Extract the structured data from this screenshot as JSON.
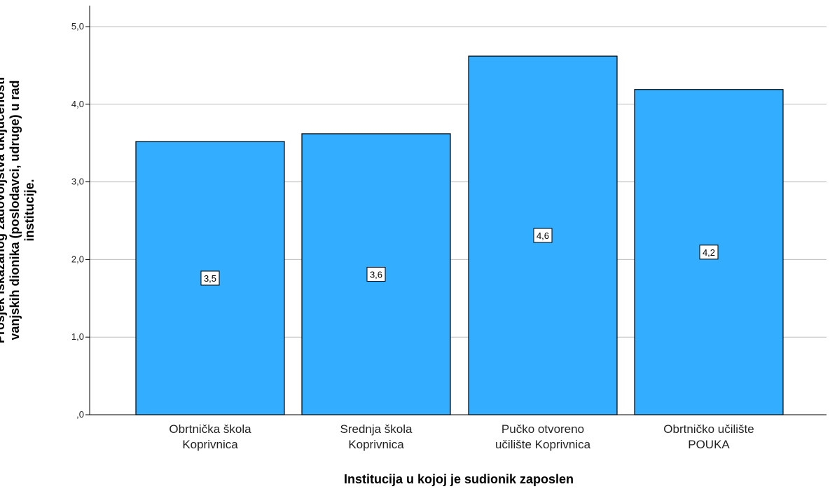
{
  "chart_data": {
    "type": "bar",
    "categories": [
      [
        "Obrtnička škola",
        "Koprivnica"
      ],
      [
        "Srednja škola",
        "Koprivnica"
      ],
      [
        "Pučko otvoreno",
        "učilište Koprivnica"
      ],
      [
        "Obrtničko učilište",
        "POUKA"
      ]
    ],
    "values": [
      3.52,
      3.62,
      4.62,
      4.19
    ],
    "value_labels": [
      "3,5",
      "3,6",
      "4,6",
      "4,2"
    ],
    "y_ticks": [
      0,
      1,
      2,
      3,
      4,
      5
    ],
    "y_tick_labels": [
      ",0",
      "1,0",
      "2,0",
      "3,0",
      "4,0",
      "5,0"
    ],
    "ylim": [
      0,
      5.25
    ],
    "xlabel": "Institucija u kojoj je sudionik zaposlen",
    "ylabel": [
      "Prosjek iskazanog zadovoljstva uključenosti",
      "vanjskih dionika (poslodavci, udruge) u rad",
      "institucije."
    ],
    "grid": true,
    "bar_color": "#33adff",
    "bar_stroke": "#000000",
    "grid_color": "#bdbdbd"
  }
}
